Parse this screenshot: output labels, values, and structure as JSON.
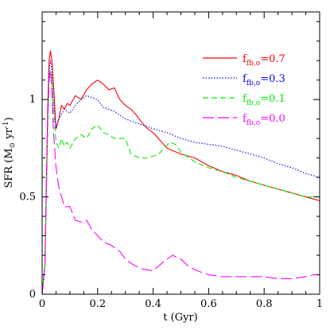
{
  "chart_data": {
    "type": "line",
    "xlabel": "t  (Gyr)",
    "ylabel_main": "SFR  (M",
    "ylabel_sub": "⊙",
    "ylabel_unit": " yr",
    "ylabel_sup": "-1",
    "ylabel_close": ")",
    "xlim": [
      0,
      1
    ],
    "ylim": [
      0,
      1.45
    ],
    "xticks": [
      0,
      0.2,
      0.4,
      0.6,
      0.8,
      1
    ],
    "xtick_labels": [
      "0",
      "0.2",
      "0.4",
      "0.6",
      "0.8",
      "1"
    ],
    "yticks": [
      0,
      0.5,
      1
    ],
    "ytick_labels": [
      "0",
      "0.5",
      "1"
    ],
    "legend_position": "top-right",
    "series": [
      {
        "legend_main": "f",
        "legend_sub": "fb,o",
        "legend_value": "=0.7",
        "color": "#ff0000",
        "dash": "",
        "x": [
          0,
          0.01,
          0.02,
          0.025,
          0.03,
          0.035,
          0.04,
          0.05,
          0.06,
          0.07,
          0.08,
          0.09,
          0.1,
          0.12,
          0.14,
          0.16,
          0.18,
          0.2,
          0.22,
          0.24,
          0.26,
          0.28,
          0.3,
          0.32,
          0.34,
          0.36,
          0.38,
          0.4,
          0.45,
          0.5,
          0.55,
          0.6,
          0.65,
          0.7,
          0.75,
          0.8,
          0.85,
          0.9,
          0.95,
          1.0
        ],
        "y": [
          0,
          0.15,
          0.95,
          1.2,
          1.25,
          1.2,
          1.1,
          0.85,
          0.9,
          0.97,
          0.95,
          0.98,
          0.97,
          1.02,
          1.0,
          1.05,
          1.08,
          1.1,
          1.08,
          1.05,
          1.06,
          1.0,
          0.97,
          0.95,
          0.92,
          0.88,
          0.85,
          0.83,
          0.75,
          0.72,
          0.7,
          0.66,
          0.63,
          0.61,
          0.58,
          0.56,
          0.54,
          0.52,
          0.5,
          0.48
        ]
      },
      {
        "legend_main": "f",
        "legend_sub": "fb,o",
        "legend_value": "=0.3",
        "color": "#0000ff",
        "dash": "1.5,2",
        "x": [
          0,
          0.01,
          0.02,
          0.025,
          0.03,
          0.035,
          0.04,
          0.05,
          0.06,
          0.08,
          0.1,
          0.12,
          0.14,
          0.16,
          0.18,
          0.2,
          0.22,
          0.24,
          0.26,
          0.28,
          0.3,
          0.34,
          0.38,
          0.4,
          0.45,
          0.5,
          0.55,
          0.6,
          0.65,
          0.7,
          0.75,
          0.8,
          0.85,
          0.9,
          0.95,
          1.0
        ],
        "y": [
          0,
          0.15,
          0.9,
          1.15,
          1.2,
          1.15,
          1.0,
          0.85,
          0.9,
          0.95,
          0.93,
          0.97,
          1.0,
          1.02,
          1.01,
          1.0,
          0.96,
          0.95,
          0.94,
          0.92,
          0.9,
          0.88,
          0.86,
          0.85,
          0.83,
          0.8,
          0.78,
          0.77,
          0.76,
          0.74,
          0.72,
          0.7,
          0.67,
          0.65,
          0.62,
          0.6
        ]
      },
      {
        "legend_main": "f",
        "legend_sub": "fb,o",
        "legend_value": "=0.1",
        "color": "#00ee00",
        "dash": "7,4",
        "x": [
          0,
          0.01,
          0.02,
          0.025,
          0.03,
          0.035,
          0.04,
          0.05,
          0.06,
          0.07,
          0.08,
          0.09,
          0.1,
          0.12,
          0.14,
          0.16,
          0.18,
          0.2,
          0.22,
          0.24,
          0.26,
          0.28,
          0.3,
          0.32,
          0.35,
          0.38,
          0.42,
          0.46,
          0.48,
          0.5,
          0.55,
          0.6,
          0.65,
          0.7,
          0.75,
          0.8,
          0.85,
          0.9,
          0.95,
          1.0
        ],
        "y": [
          0,
          0.15,
          0.85,
          1.12,
          1.15,
          1.1,
          0.95,
          0.78,
          0.75,
          0.8,
          0.76,
          0.78,
          0.75,
          0.8,
          0.82,
          0.8,
          0.85,
          0.87,
          0.83,
          0.82,
          0.8,
          0.8,
          0.8,
          0.72,
          0.7,
          0.7,
          0.72,
          0.78,
          0.77,
          0.73,
          0.68,
          0.65,
          0.63,
          0.6,
          0.58,
          0.56,
          0.54,
          0.52,
          0.5,
          0.5
        ]
      },
      {
        "legend_main": "f",
        "legend_sub": "fb,o",
        "legend_value": "=0.0",
        "color": "#ff00ff",
        "dash": "14,5",
        "x": [
          0,
          0.01,
          0.02,
          0.025,
          0.03,
          0.035,
          0.04,
          0.05,
          0.06,
          0.07,
          0.08,
          0.1,
          0.12,
          0.14,
          0.16,
          0.18,
          0.2,
          0.22,
          0.25,
          0.28,
          0.3,
          0.33,
          0.36,
          0.4,
          0.44,
          0.47,
          0.5,
          0.53,
          0.56,
          0.6,
          0.65,
          0.7,
          0.75,
          0.8,
          0.85,
          0.9,
          0.95,
          0.98,
          1.0
        ],
        "y": [
          0,
          0.15,
          0.9,
          1.1,
          1.15,
          1.05,
          0.85,
          0.65,
          0.55,
          0.5,
          0.45,
          0.45,
          0.38,
          0.37,
          0.38,
          0.33,
          0.3,
          0.27,
          0.25,
          0.22,
          0.18,
          0.15,
          0.13,
          0.12,
          0.17,
          0.2,
          0.18,
          0.14,
          0.12,
          0.1,
          0.09,
          0.09,
          0.09,
          0.09,
          0.08,
          0.08,
          0.09,
          0.1,
          0.1
        ]
      }
    ]
  }
}
